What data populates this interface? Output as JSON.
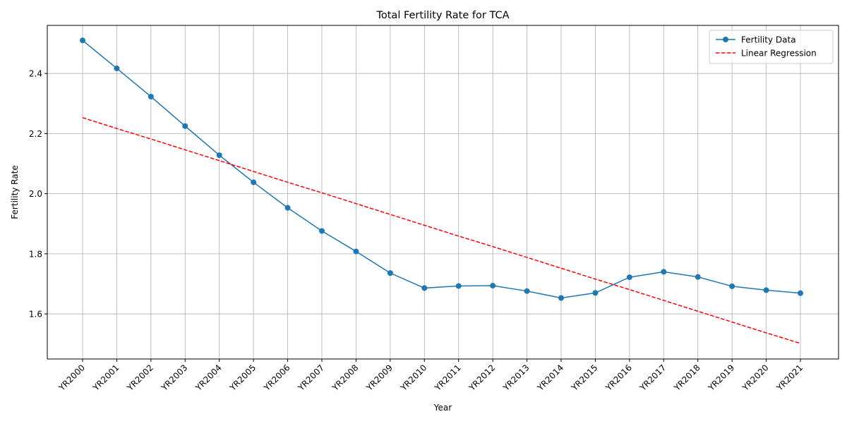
{
  "chart_data": {
    "type": "line",
    "title": "Total Fertility Rate for TCA",
    "xlabel": "Year",
    "ylabel": "Fertility Rate",
    "categories": [
      "YR2000",
      "YR2001",
      "YR2002",
      "YR2003",
      "YR2004",
      "YR2005",
      "YR2006",
      "YR2007",
      "YR2008",
      "YR2009",
      "YR2010",
      "YR2011",
      "YR2012",
      "YR2013",
      "YR2014",
      "YR2015",
      "YR2016",
      "YR2017",
      "YR2018",
      "YR2019",
      "YR2020",
      "YR2021"
    ],
    "yticks": [
      1.6,
      1.8,
      2.0,
      2.2,
      2.4
    ],
    "ylim": [
      1.45,
      2.56
    ],
    "grid": true,
    "legend_position": "top-right",
    "series": [
      {
        "name": "Fertility Data",
        "style": "solid-with-markers",
        "color": "#1f77b4",
        "values": [
          2.51,
          2.417,
          2.323,
          2.225,
          2.128,
          2.038,
          1.953,
          1.876,
          1.808,
          1.736,
          1.686,
          1.693,
          1.694,
          1.676,
          1.653,
          1.67,
          1.722,
          1.74,
          1.723,
          1.692,
          1.679,
          1.669
        ]
      },
      {
        "name": "Linear Regression",
        "style": "dashed",
        "color": "#ff0000",
        "values": [
          2.253,
          2.217,
          2.182,
          2.146,
          2.11,
          2.074,
          2.038,
          2.003,
          1.967,
          1.931,
          1.895,
          1.859,
          1.824,
          1.788,
          1.752,
          1.716,
          1.681,
          1.645,
          1.609,
          1.573,
          1.537,
          1.502
        ]
      }
    ]
  }
}
